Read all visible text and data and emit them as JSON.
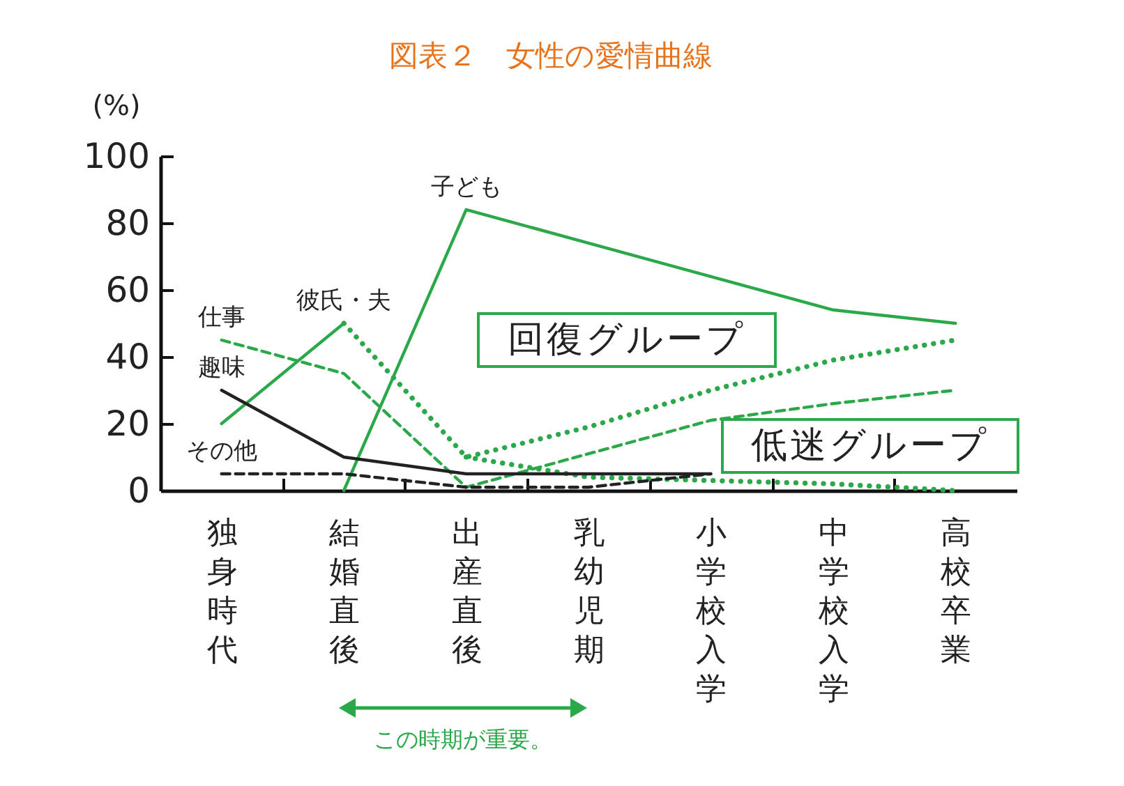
{
  "chart_data": {
    "type": "line",
    "title": "図表２　女性の愛情曲線",
    "ylabel": "(%)",
    "categories": [
      "独身時代",
      "結婚直後",
      "出産直後",
      "乳幼児期",
      "小学校入学",
      "中学校入学",
      "高校卒業"
    ],
    "ylim": [
      0,
      100
    ],
    "yticks": [
      0,
      20,
      40,
      60,
      80,
      100
    ],
    "series": [
      {
        "name": "子ども",
        "color": "#2aa84a",
        "line_style": "solid",
        "values": [
          null,
          0,
          84,
          74,
          64,
          54,
          50
        ]
      },
      {
        "name": "彼氏・夫",
        "color": "#2aa84a",
        "line_style": "solid",
        "values": [
          20,
          50,
          null,
          null,
          null,
          null,
          null
        ]
      },
      {
        "color": "#2aa84a",
        "line_style": "dotted",
        "values": [
          null,
          50,
          10,
          19,
          30,
          39,
          45
        ]
      },
      {
        "color": "#2aa84a",
        "line_style": "dotted",
        "values": [
          null,
          null,
          10,
          4,
          3,
          2,
          0
        ]
      },
      {
        "name": "仕事",
        "color": "#2aa84a",
        "line_style": "dashed",
        "values": [
          45,
          35,
          1,
          11,
          21,
          26,
          30
        ]
      },
      {
        "name": "趣味",
        "color": "#222222",
        "line_style": "solid",
        "values": [
          30,
          10,
          5,
          5,
          5,
          null,
          null
        ]
      },
      {
        "name": "その他",
        "color": "#222222",
        "line_style": "dashed",
        "values": [
          5,
          5,
          1,
          1,
          5,
          null,
          null
        ]
      }
    ],
    "annotations": [
      "回復グループ",
      "低迷グループ",
      "この時期が重要。"
    ]
  }
}
